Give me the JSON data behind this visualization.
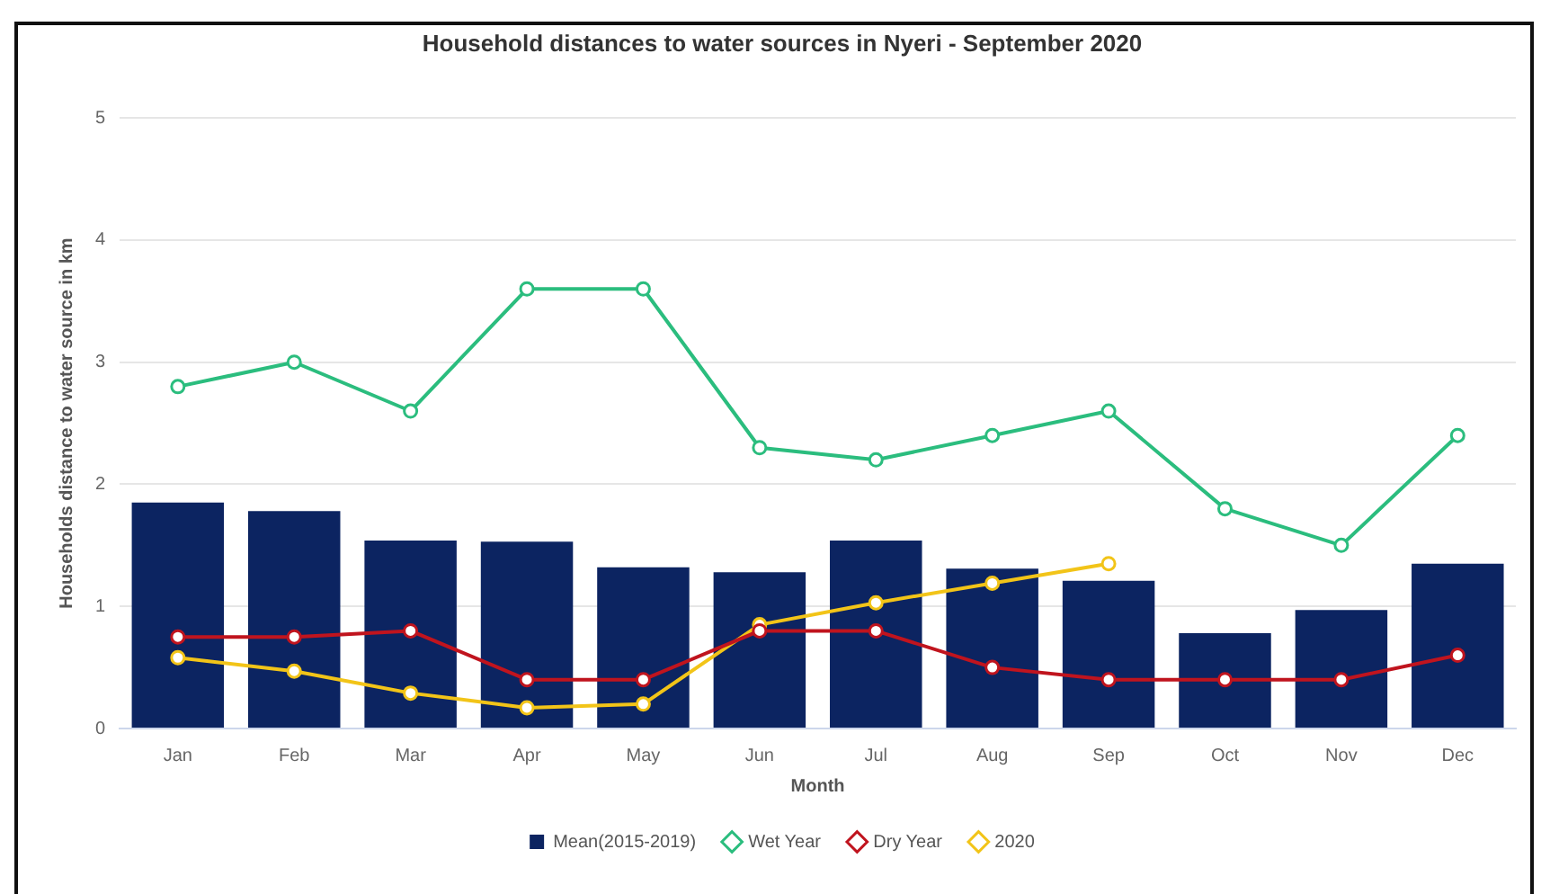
{
  "chart_data": {
    "type": "bar",
    "title": "Household distances to water sources in Nyeri - September 2020",
    "xlabel": "Month",
    "ylabel": "Households distance to water source in km",
    "categories": [
      "Jan",
      "Feb",
      "Mar",
      "Apr",
      "May",
      "Jun",
      "Jul",
      "Aug",
      "Sep",
      "Oct",
      "Nov",
      "Dec"
    ],
    "series": [
      {
        "name": "Mean(2015-2019)",
        "color": "#0c2461",
        "values": [
          1.85,
          1.78,
          1.54,
          1.53,
          1.32,
          1.28,
          1.54,
          1.31,
          1.21,
          0.78,
          0.97,
          1.35
        ]
      },
      {
        "name": "Wet Year",
        "type": "line",
        "color": "#2bbd7e",
        "values": [
          2.8,
          3.0,
          2.6,
          3.6,
          3.6,
          2.3,
          2.2,
          2.4,
          2.6,
          1.8,
          1.5,
          2.4
        ]
      },
      {
        "name": "Dry Year",
        "type": "line",
        "color": "#c0141e",
        "values": [
          0.75,
          0.75,
          0.8,
          0.4,
          0.4,
          0.8,
          0.8,
          0.5,
          0.4,
          0.4,
          0.4,
          0.6
        ]
      },
      {
        "name": "2020",
        "type": "line",
        "color": "#f2c418",
        "values": [
          0.58,
          0.47,
          0.29,
          0.17,
          0.2,
          0.85,
          1.03,
          1.19,
          1.35,
          null,
          null,
          null
        ]
      }
    ],
    "ylim": [
      0,
      5
    ],
    "yticks": [
      0,
      1,
      2,
      3,
      4,
      5
    ],
    "grid": "y",
    "legend": "bottom",
    "marker": "circle"
  }
}
